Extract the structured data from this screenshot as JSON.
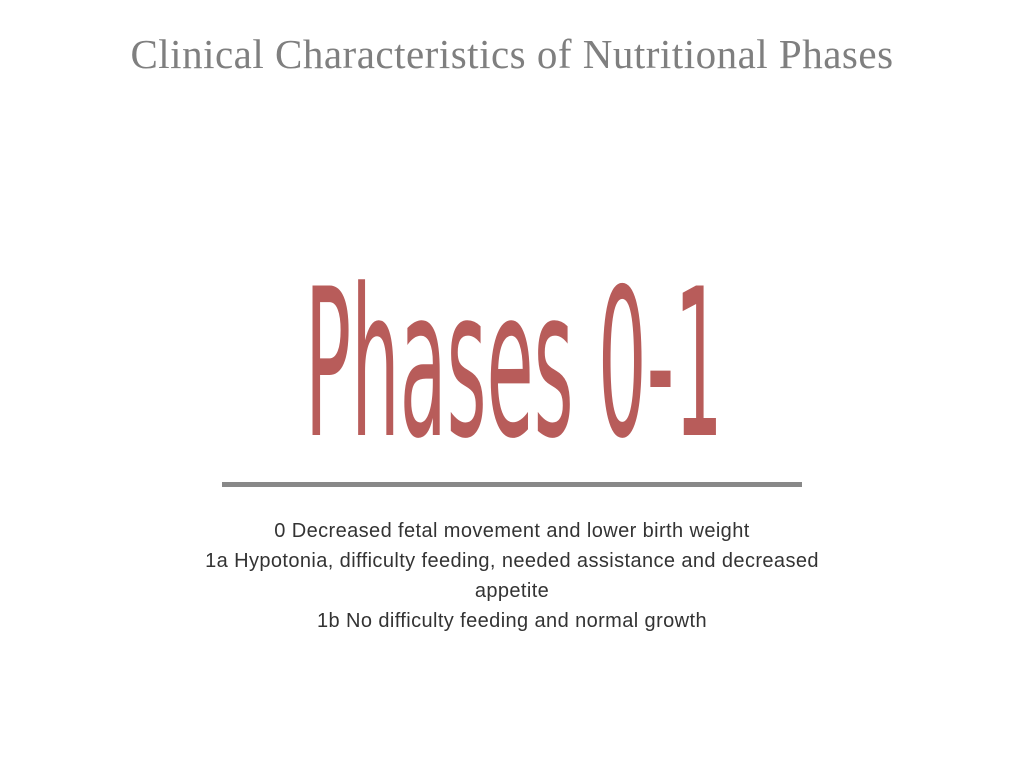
{
  "title": "Clinical Characteristics of Nutritional Phases",
  "heading": "Phases 0-1",
  "lines": [
    "0 Decreased fetal movement and lower birth weight",
    "1a Hypotonia, difficulty feeding, needed assistance and decreased appetite",
    "1b No difficulty feeding and normal growth"
  ]
}
